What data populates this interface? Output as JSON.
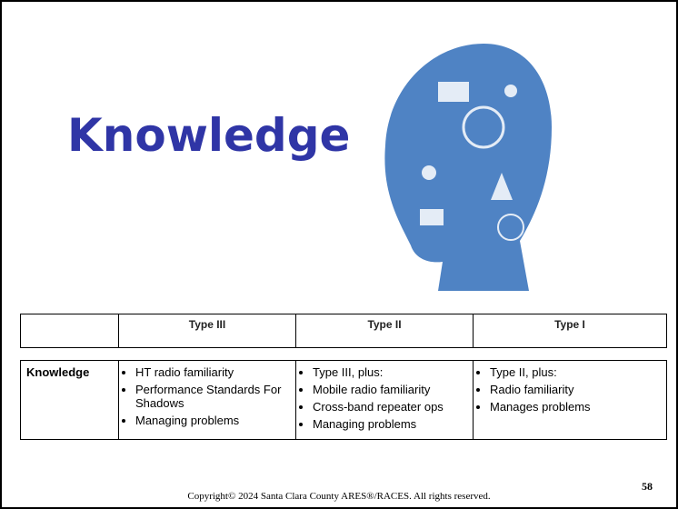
{
  "title": "Knowledge",
  "header_table": {
    "columns": [
      "Type III",
      "Type II",
      "Type I"
    ]
  },
  "table": {
    "rows": [
      {
        "label": "Knowledge",
        "cells": [
          [
            "HT radio familiarity",
            "Performance Standards For Shadows",
            "Managing problems"
          ],
          [
            "Type III, plus:",
            "Mobile radio familiarity",
            "Cross-band repeater ops",
            "Managing problems"
          ],
          [
            "Type II, plus:",
            "Radio familiarity",
            "Manages problems"
          ]
        ]
      }
    ]
  },
  "footer": {
    "copyright": "Copyright© 2024 Santa Clara County ARES®/RACES. All rights reserved.",
    "page_number": 58
  }
}
